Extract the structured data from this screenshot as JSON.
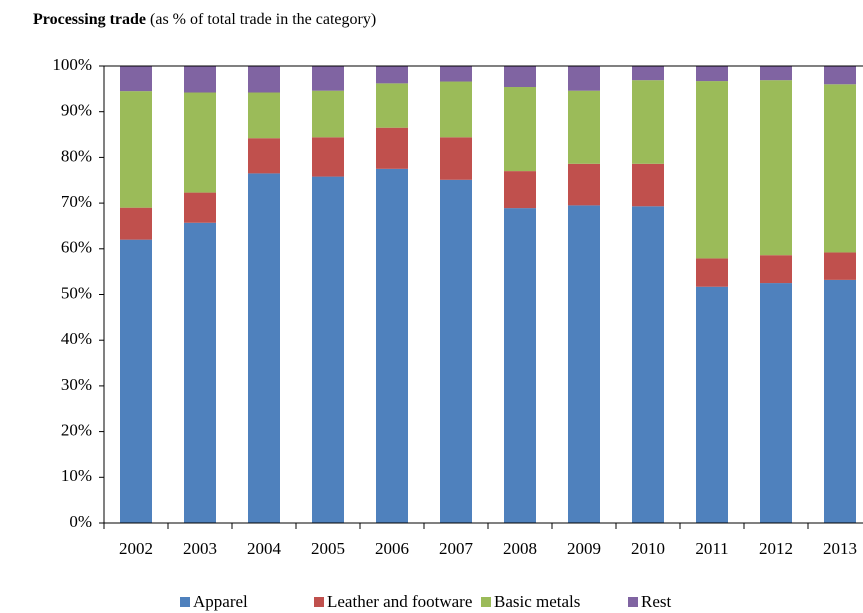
{
  "chart_data": {
    "type": "stacked_bar",
    "title": "Processing trade",
    "subtitle": "(as % of total trade in the category)",
    "categories": [
      "2002",
      "2003",
      "2004",
      "2005",
      "2006",
      "2007",
      "2008",
      "2009",
      "2010",
      "2011",
      "2012",
      "2013"
    ],
    "series": [
      {
        "name": "Apparel",
        "color": "#4f81bd",
        "values": [
          62,
          65.7,
          76.5,
          75.8,
          77.5,
          75.1,
          68.9,
          69.5,
          69.3,
          51.7,
          52.5,
          53.2
        ]
      },
      {
        "name": "Leather and footware",
        "color": "#c0504d",
        "values": [
          7,
          6.6,
          7.7,
          8.6,
          9,
          9.3,
          8.1,
          9.1,
          9.3,
          6.2,
          6.1,
          6
        ]
      },
      {
        "name": "Basic metals",
        "color": "#9bbb59",
        "values": [
          25.5,
          21.9,
          10,
          10.2,
          9.7,
          12.2,
          18.4,
          16,
          18.3,
          38.8,
          38.3,
          36.8
        ]
      },
      {
        "name": "Rest",
        "color": "#8064a2",
        "values": [
          5.5,
          5.8,
          5.8,
          5.4,
          3.8,
          3.4,
          4.6,
          5.4,
          3.1,
          3.3,
          3.1,
          4
        ]
      }
    ],
    "ylim": [
      0,
      100
    ],
    "yticks": [
      {
        "value": 0,
        "label": "0%"
      },
      {
        "value": 10,
        "label": "10%"
      },
      {
        "value": 20,
        "label": "20%"
      },
      {
        "value": 30,
        "label": "30%"
      },
      {
        "value": 40,
        "label": "40%"
      },
      {
        "value": 50,
        "label": "50%"
      },
      {
        "value": 60,
        "label": "60%"
      },
      {
        "value": 70,
        "label": "70%"
      },
      {
        "value": 80,
        "label": "80%"
      },
      {
        "value": 90,
        "label": "90%"
      },
      {
        "value": 100,
        "label": "100%"
      }
    ],
    "legend": "bottom"
  }
}
